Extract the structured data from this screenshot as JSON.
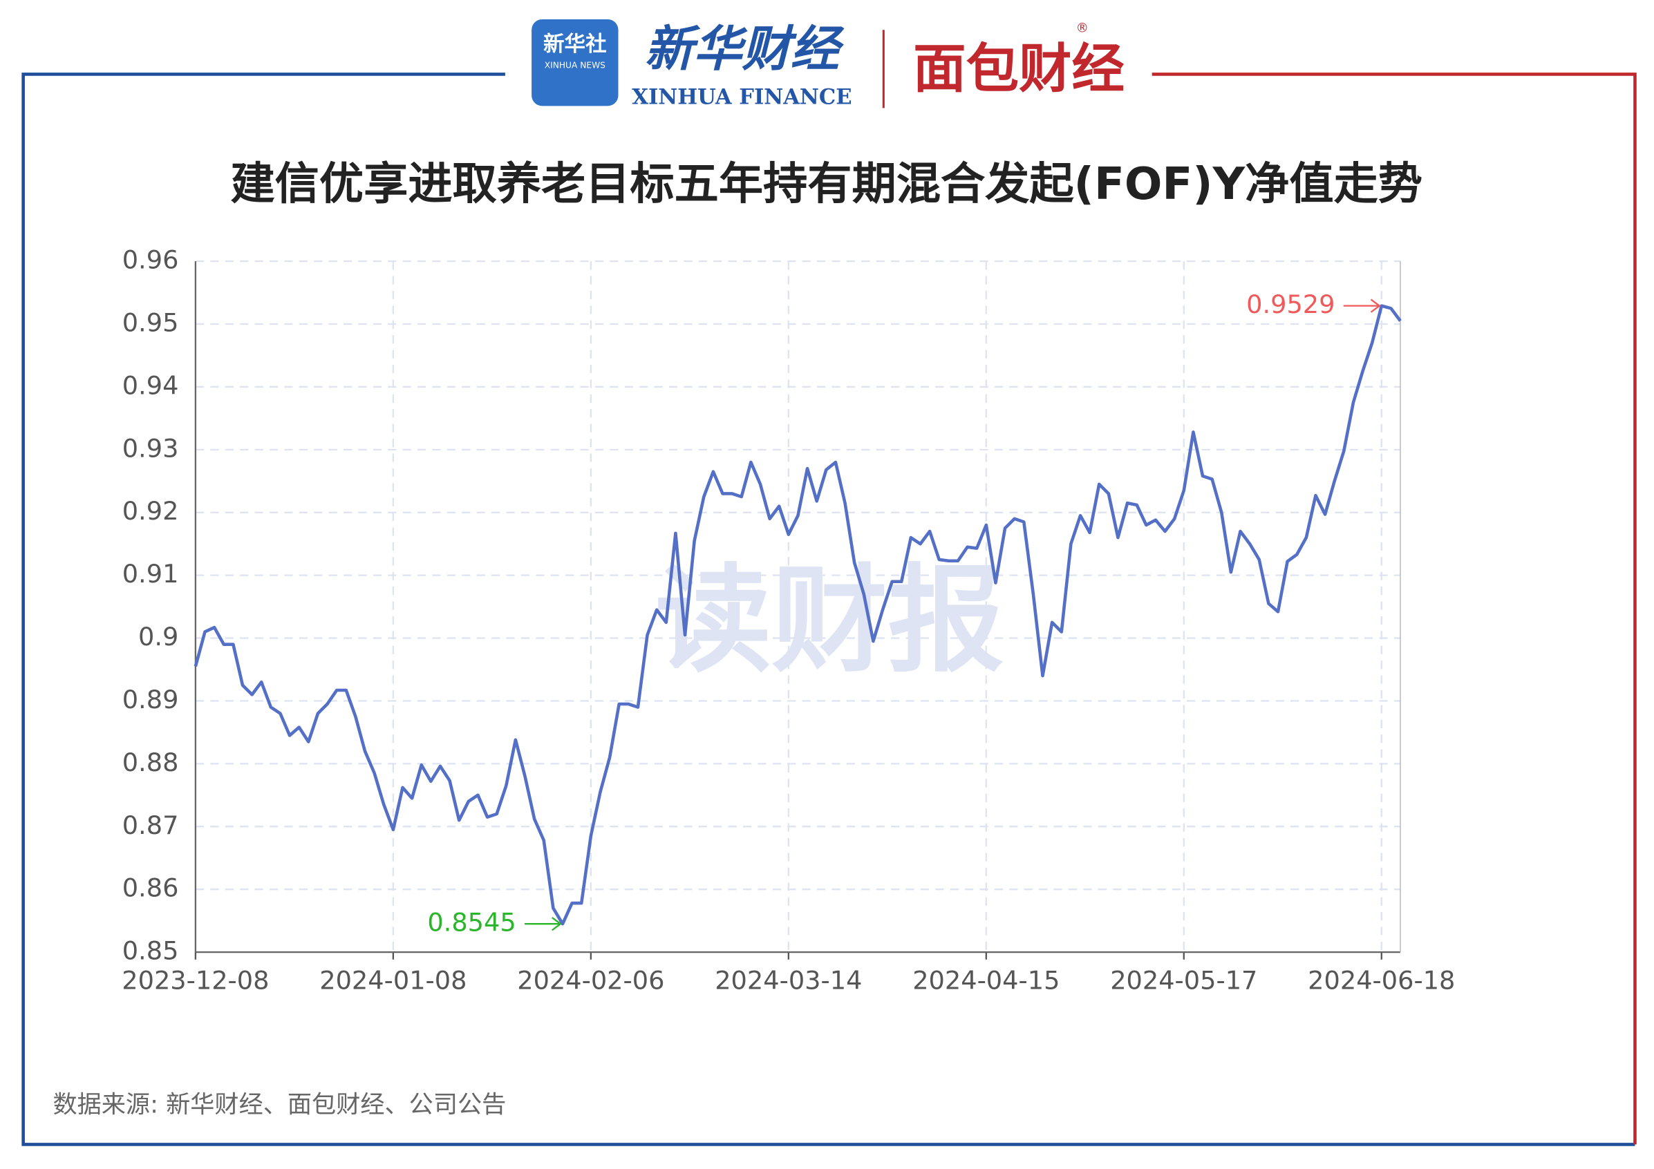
{
  "branding": {
    "agency_cn": "新华社",
    "agency_en": "XINHUA NEWS",
    "finance_cn": "新华财经",
    "finance_en": "XINHUA FINANCE",
    "partner": "面包财经",
    "registered": "®",
    "watermark": "读财报"
  },
  "source": "数据来源: 新华财经、面包财经、公司公告",
  "chart_data": {
    "type": "line",
    "title": "建信优享进取养老目标五年持有期混合发起(FOF)Y净值走势",
    "categories": [
      "2023-12-08",
      null,
      null,
      null,
      null,
      null,
      null,
      null,
      null,
      null,
      null,
      null,
      null,
      null,
      null,
      null,
      null,
      null,
      null,
      null,
      null,
      "2024-01-08",
      null,
      null,
      null,
      null,
      null,
      null,
      null,
      null,
      null,
      null,
      null,
      null,
      null,
      null,
      null,
      null,
      null,
      null,
      null,
      null,
      "2024-02-06",
      null,
      null,
      null,
      null,
      null,
      null,
      null,
      null,
      null,
      null,
      null,
      null,
      null,
      null,
      null,
      null,
      null,
      null,
      null,
      null,
      "2024-03-14",
      null,
      null,
      null,
      null,
      null,
      null,
      null,
      null,
      null,
      null,
      null,
      null,
      null,
      null,
      null,
      null,
      null,
      null,
      null,
      null,
      "2024-04-15",
      null,
      null,
      null,
      null,
      null,
      null,
      null,
      null,
      null,
      null,
      null,
      null,
      null,
      null,
      null,
      null,
      null,
      null,
      null,
      null,
      "2024-05-17",
      null,
      null,
      null,
      null,
      null,
      null,
      null,
      null,
      null,
      null,
      null,
      null,
      null,
      null,
      null,
      null,
      null,
      null,
      null,
      null,
      "2024-06-18",
      null,
      null
    ],
    "series": [
      {
        "name": "净值",
        "color": "#5470c6",
        "values": [
          0.8955,
          0.901,
          0.9017,
          0.899,
          0.899,
          0.8925,
          0.891,
          0.893,
          0.889,
          0.888,
          0.8845,
          0.8858,
          0.8835,
          0.888,
          0.8895,
          0.8917,
          0.8917,
          0.8875,
          0.882,
          0.8785,
          0.8735,
          0.8695,
          0.8762,
          0.8745,
          0.8798,
          0.8772,
          0.8796,
          0.8773,
          0.871,
          0.874,
          0.875,
          0.8715,
          0.872,
          0.8765,
          0.8838,
          0.878,
          0.8712,
          0.8678,
          0.857,
          0.8545,
          0.8578,
          0.8578,
          0.8685,
          0.8755,
          0.881,
          0.8895,
          0.8895,
          0.889,
          0.9005,
          0.9045,
          0.9025,
          0.9167,
          0.9005,
          0.9155,
          0.9225,
          0.9265,
          0.923,
          0.923,
          0.9225,
          0.928,
          0.9245,
          0.919,
          0.921,
          0.9165,
          0.9195,
          0.927,
          0.9218,
          0.9268,
          0.928,
          0.9215,
          0.912,
          0.907,
          0.8995,
          0.9045,
          0.909,
          0.909,
          0.916,
          0.915,
          0.917,
          0.9125,
          0.9123,
          0.9123,
          0.9145,
          0.9143,
          0.918,
          0.9088,
          0.9175,
          0.919,
          0.9185,
          0.907,
          0.894,
          0.9025,
          0.901,
          0.915,
          0.9195,
          0.9168,
          0.9245,
          0.923,
          0.916,
          0.9215,
          0.9212,
          0.918,
          0.9188,
          0.917,
          0.919,
          0.9235,
          0.9328,
          0.9258,
          0.9253,
          0.92,
          0.9105,
          0.917,
          0.915,
          0.9125,
          0.9055,
          0.9042,
          0.9122,
          0.9133,
          0.916,
          0.9227,
          0.9197,
          0.925,
          0.9298,
          0.9375,
          0.9425,
          0.947,
          0.9529,
          0.9525,
          0.9505
        ]
      }
    ],
    "annotations": [
      {
        "value": 0.8545,
        "color": "#2ab52a"
      },
      {
        "value": 0.9529,
        "color": "#f05a5a"
      }
    ],
    "ylim": [
      0.85,
      0.96
    ],
    "yticks": [
      0.85,
      0.86,
      0.87,
      0.88,
      0.89,
      0.9,
      0.91,
      0.92,
      0.93,
      0.94,
      0.95,
      0.96
    ],
    "grid": true
  }
}
